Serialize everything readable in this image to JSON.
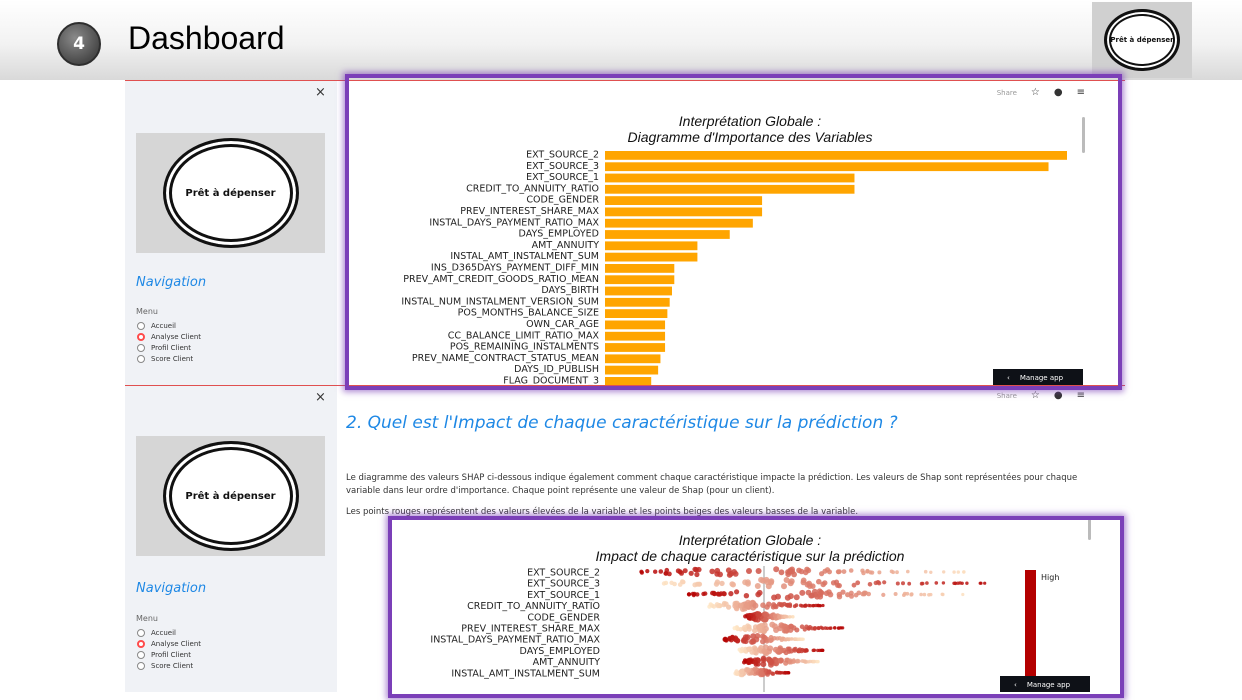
{
  "slide": {
    "number": "4",
    "title": "Dashboard",
    "logo_text": "Prêt à dépenser"
  },
  "app": {
    "close_symbol": "×",
    "logo_text": "Prêt à dépenser",
    "nav_title": "Navigation",
    "menu_label": "Menu",
    "menu_items": [
      "Accueil",
      "Analyse Client",
      "Profil Client",
      "Score Client"
    ],
    "selected_index": 1,
    "toolbar": {
      "share": "Share",
      "icons": [
        "star-icon",
        "github-icon",
        "hamburger-menu-icon"
      ]
    },
    "manage_app": "Manage app",
    "manage_chevron": "‹"
  },
  "section2": {
    "title": "2. Quel est l'Impact de chaque caractéristique sur la prédiction ?",
    "paragraph1": "Le diagramme des valeurs SHAP ci-dessous indique également comment chaque caractéristique impacte la prédiction. Les valeurs de Shap sont représentées pour chaque variable dans leur ordre d'importance. Chaque point représente une valeur de Shap (pour un client).",
    "paragraph2": "Les points rouges représentent des valeurs élevées de la variable et les points beiges des valeurs basses de la variable."
  },
  "chart_data": [
    {
      "type": "bar",
      "orientation": "horizontal",
      "title": "Interprétation Globale :\nDiagramme d'Importance des Variables",
      "title_lines": [
        "Interprétation Globale :",
        "Diagramme d'Importance des Variables"
      ],
      "categories": [
        "EXT_SOURCE_2",
        "EXT_SOURCE_3",
        "EXT_SOURCE_1",
        "CREDIT_TO_ANNUITY_RATIO",
        "CODE_GENDER",
        "PREV_INTEREST_SHARE_MAX",
        "INSTAL_DAYS_PAYMENT_RATIO_MAX",
        "DAYS_EMPLOYED",
        "AMT_ANNUITY",
        "INSTAL_AMT_INSTALMENT_SUM",
        "INS_D365DAYS_PAYMENT_DIFF_MIN",
        "PREV_AMT_CREDIT_GOODS_RATIO_MEAN",
        "DAYS_BIRTH",
        "INSTAL_NUM_INSTALMENT_VERSION_SUM",
        "POS_MONTHS_BALANCE_SIZE",
        "OWN_CAR_AGE",
        "CC_BALANCE_LIMIT_RATIO_MAX",
        "POS_REMAINING_INSTALMENTS",
        "PREV_NAME_CONTRACT_STATUS_MEAN",
        "DAYS_ID_PUBLISH",
        "FLAG_DOCUMENT_3"
      ],
      "values": [
        100,
        96,
        54,
        54,
        34,
        34,
        32,
        27,
        20,
        20,
        15,
        15,
        14.5,
        14,
        13.5,
        13,
        13,
        13,
        12,
        11.5,
        10
      ],
      "color": "#ffa500"
    },
    {
      "type": "scatter",
      "subtype": "shap-beeswarm",
      "title": "Interprétation Globale :\nImpact de chaque caractéristique sur la prédiction",
      "title_lines": [
        "Interprétation Globale :",
        "Impact de chaque caractéristique sur la prédiction"
      ],
      "categories": [
        "EXT_SOURCE_2",
        "EXT_SOURCE_3",
        "EXT_SOURCE_1",
        "CREDIT_TO_ANNUITY_RATIO",
        "CODE_GENDER",
        "PREV_INTEREST_SHARE_MAX",
        "INSTAL_DAYS_PAYMENT_RATIO_MAX",
        "DAYS_EMPLOYED",
        "AMT_ANNUITY",
        "INSTAL_AMT_INSTALMENT_SUM"
      ],
      "colorbar_label": "High",
      "colors": {
        "high": "#b40000",
        "low": "#ffe8c8"
      }
    }
  ]
}
